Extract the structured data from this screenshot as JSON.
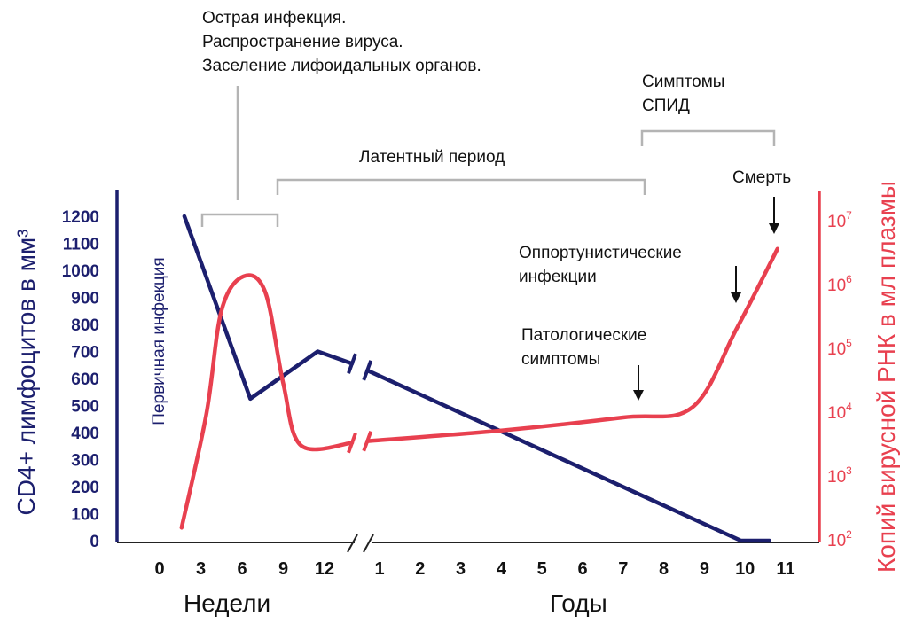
{
  "colors": {
    "cd4": "#1c1f6e",
    "viral": "#e8404f",
    "bracket": "#b4b4b4",
    "axis": "#222222"
  },
  "chart_data": {
    "type": "line",
    "title": "",
    "left_axis": {
      "label": "CD4+ лимфоцитов в мм³",
      "ylim": [
        0,
        1200
      ],
      "ticks": [
        "0",
        "100",
        "200",
        "300",
        "400",
        "500",
        "600",
        "700",
        "800",
        "900",
        "1000",
        "1100",
        "1200"
      ]
    },
    "right_axis": {
      "label": "Копий вирусной РНК в мл плазмы",
      "scale": "log",
      "ylim": [
        100,
        10000000
      ],
      "ticks": [
        {
          "base": "10",
          "exp": "2"
        },
        {
          "base": "10",
          "exp": "3"
        },
        {
          "base": "10",
          "exp": "4"
        },
        {
          "base": "10",
          "exp": "5"
        },
        {
          "base": "10",
          "exp": "6"
        },
        {
          "base": "10",
          "exp": "7"
        }
      ]
    },
    "x_axis": {
      "broken": true,
      "weeks": {
        "label": "Недели",
        "ticks": [
          "0",
          "3",
          "6",
          "9",
          "12"
        ]
      },
      "years": {
        "label": "Годы",
        "ticks": [
          "1",
          "2",
          "3",
          "4",
          "5",
          "6",
          "7",
          "8",
          "9",
          "10",
          "11"
        ]
      }
    },
    "series": [
      {
        "id": "cd4",
        "axis": "left",
        "weeks": [
          [
            1.8,
            1200
          ],
          [
            6.6,
            525
          ],
          [
            11.5,
            700
          ],
          [
            14.0,
            655
          ]
        ],
        "years": [
          [
            0.7,
            630
          ],
          [
            9.9,
            0
          ],
          [
            10.6,
            0
          ]
        ]
      },
      {
        "id": "viral",
        "axis": "right",
        "weeks": [
          [
            1.6,
            150
          ],
          [
            3.4,
            9000
          ],
          [
            4.5,
            380000
          ],
          [
            6.1,
            1300000
          ],
          [
            7.7,
            720000
          ],
          [
            9.0,
            27000
          ],
          [
            10.3,
            2900
          ],
          [
            14.0,
            3200
          ]
        ],
        "years": [
          [
            0.7,
            3400
          ],
          [
            4.0,
            5000
          ],
          [
            7.0,
            8000
          ],
          [
            8.7,
            11500
          ],
          [
            9.8,
            200000
          ],
          [
            10.8,
            3500000
          ]
        ]
      }
    ],
    "annotations": {
      "acute": [
        "Острая инфекция.",
        "Распространение вируса.",
        "Заселение лифоидальных органов."
      ],
      "primary": "Первичная инфекция",
      "latent": "Латентный период",
      "aids": [
        "Симптомы",
        "СПИД"
      ],
      "death": "Смерть",
      "opportunistic": [
        "Оппортунистические",
        "инфекции"
      ],
      "pathologic": [
        "Патологические",
        "симптомы"
      ]
    }
  }
}
